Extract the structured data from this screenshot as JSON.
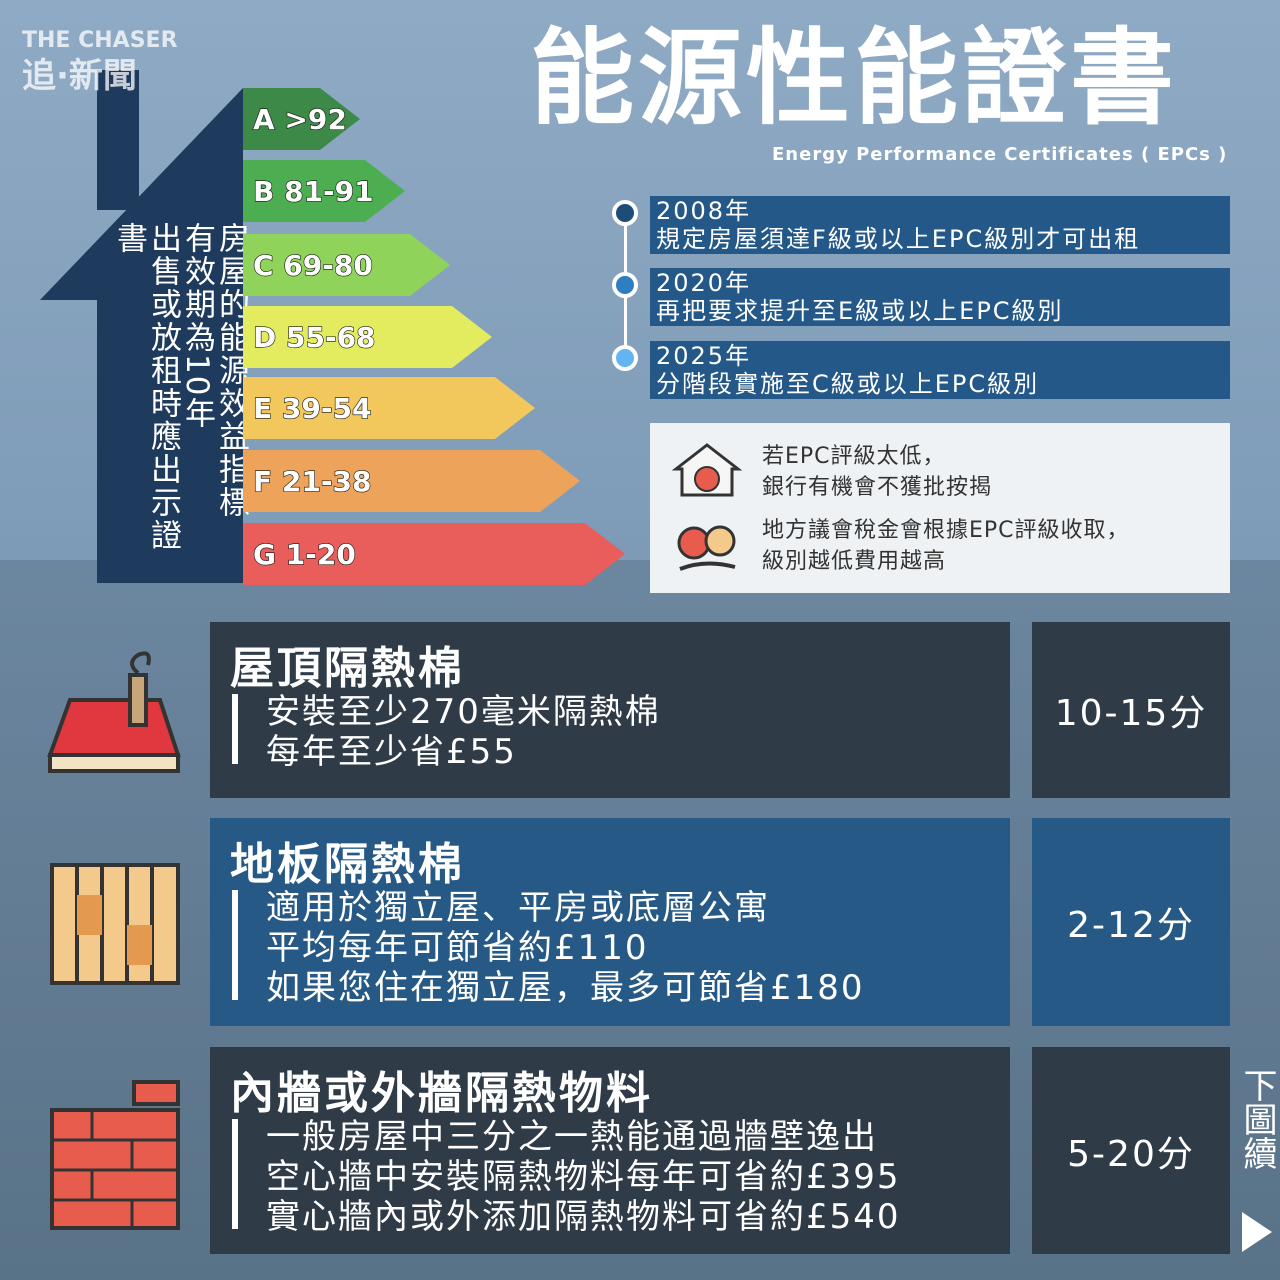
{
  "brand": {
    "name": "THE CHASER",
    "name_zh": "追·新聞"
  },
  "header": {
    "title": "能源性能證書",
    "subtitle": "Energy Performance Certificates ( EPCs )"
  },
  "house": {
    "lines": [
      "房屋的能源效益指標",
      "有效期為10年",
      "出售或放租時應出示證書"
    ]
  },
  "ratings": [
    {
      "label": "A >92",
      "color": "#3d8a48"
    },
    {
      "label": "B 81-91",
      "color": "#4cae50"
    },
    {
      "label": "C 69-80",
      "color": "#8fd35b"
    },
    {
      "label": "D 55-68",
      "color": "#e3ec5e"
    },
    {
      "label": "E 39-54",
      "color": "#f2c85c"
    },
    {
      "label": "F 21-38",
      "color": "#eea35b"
    },
    {
      "label": "G 1-20",
      "color": "#e95d5a"
    }
  ],
  "timeline": [
    {
      "year": "2008年",
      "text": "規定房屋須達F級或以上EPC級別才可出租",
      "color": "#1d4c78"
    },
    {
      "year": "2020年",
      "text": "再把要求提升至E級或以上EPC級別",
      "color": "#2e7fc2"
    },
    {
      "year": "2025年",
      "text": "分階段實施至C級或以上EPC級別",
      "color": "#62b5f0"
    }
  ],
  "notes": [
    {
      "lines": [
        "若EPC評級太低，",
        "銀行有機會不獲批按揭"
      ]
    },
    {
      "lines": [
        "地方議會稅金會根據EPC評級收取，",
        "級別越低費用越高"
      ]
    }
  ],
  "measures": [
    {
      "title": "屋頂隔熱棉",
      "lines": [
        "安裝至少270毫米隔熱棉",
        "每年至少省£55"
      ],
      "score": "10-15分"
    },
    {
      "title": "地板隔熱棉",
      "lines": [
        "適用於獨立屋、平房或底層公寓",
        "平均每年可節省約£110",
        "如果您住在獨立屋，最多可節省£180"
      ],
      "score": "2-12分"
    },
    {
      "title": "內牆或外牆隔熱物料",
      "lines": [
        "一般房屋中三分之一熱能通過牆壁逸出",
        "空心牆中安裝隔熱物料每年可省約£395",
        "實心牆內或外添加隔熱物料可省約£540"
      ],
      "score": "5-20分"
    }
  ],
  "next": "下圖續"
}
